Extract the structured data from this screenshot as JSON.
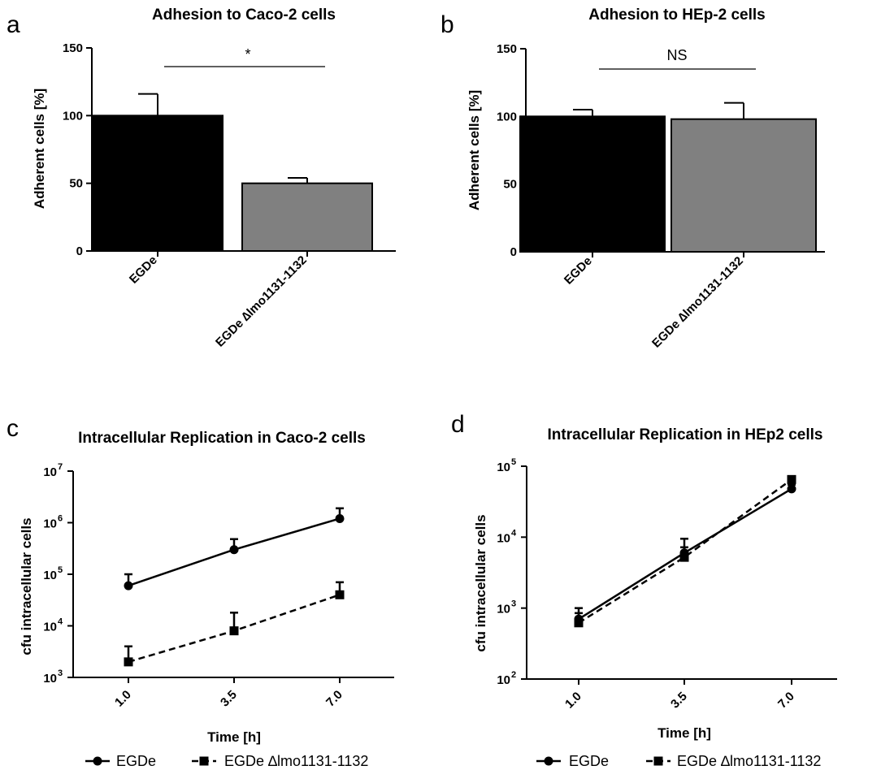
{
  "chart_data": [
    {
      "panel": "a",
      "type": "bar",
      "title": "Adhesion  to Caco-2 cells",
      "ylabel": "Adherent cells [%]",
      "xlabel": "",
      "categories": [
        "EGDe",
        "EGDe ∆lmo1131-1132"
      ],
      "values": [
        100,
        50
      ],
      "errors": [
        16,
        4
      ],
      "bar_colors": [
        "#000000",
        "#808080"
      ],
      "ylim": [
        0,
        150
      ],
      "yticks": [
        "0",
        "50",
        "100",
        "150"
      ],
      "significance": "*",
      "grid": false
    },
    {
      "panel": "b",
      "type": "bar",
      "title": "Adhesion  to HEp-2 cells",
      "ylabel": "Adherent cells [%]",
      "xlabel": "",
      "categories": [
        "EGDe",
        "EGDe ∆lmo1131-1132"
      ],
      "values": [
        100,
        98
      ],
      "errors": [
        5,
        12
      ],
      "bar_colors": [
        "#000000",
        "#808080"
      ],
      "ylim": [
        0,
        150
      ],
      "yticks": [
        "0",
        "50",
        "100",
        "150"
      ],
      "significance": "NS",
      "grid": false
    },
    {
      "panel": "c",
      "type": "line",
      "title": "Intracellular Replication in Caco-2 cells",
      "ylabel": "cfu intracellular cells",
      "xlabel": "Time [h]",
      "yscale": "log",
      "ylim": [
        1000,
        10000000
      ],
      "ytick_base": "10",
      "ytick_exponents": [
        "3",
        "4",
        "5",
        "6",
        "7"
      ],
      "x_categories": [
        "1.0",
        "3.5",
        "7.0"
      ],
      "series": [
        {
          "name": "EGDe",
          "marker": "circle",
          "dash": "solid",
          "values": [
            60000,
            300000,
            1200000
          ],
          "err_upper": [
            100000,
            480000,
            1900000
          ]
        },
        {
          "name": "EGDe ∆lmo1131-1132",
          "marker": "square",
          "dash": "dashed",
          "values": [
            2000,
            8000,
            40000
          ],
          "err_upper": [
            4000,
            18000,
            70000
          ]
        }
      ],
      "legend_position": "bottom",
      "grid": false
    },
    {
      "panel": "d",
      "type": "line",
      "title": "Intracellular Replication in HEp2 cells",
      "ylabel": "cfu intracellular cells",
      "xlabel": "Time [h]",
      "yscale": "log",
      "ylim": [
        100,
        100000
      ],
      "ytick_base": "10",
      "ytick_exponents": [
        "2",
        "3",
        "4",
        "5"
      ],
      "x_categories": [
        "1.0",
        "3.5",
        "7.0"
      ],
      "series": [
        {
          "name": "EGDe",
          "marker": "circle",
          "dash": "solid",
          "values": [
            700,
            6000,
            48000
          ],
          "err_upper": [
            1000,
            9500,
            55000
          ]
        },
        {
          "name": "EGDe ∆lmo1131-1132",
          "marker": "square",
          "dash": "dashed",
          "values": [
            620,
            5200,
            65000
          ],
          "err_upper": [
            850,
            7200,
            70000
          ]
        }
      ],
      "legend_position": "bottom",
      "grid": false
    }
  ]
}
